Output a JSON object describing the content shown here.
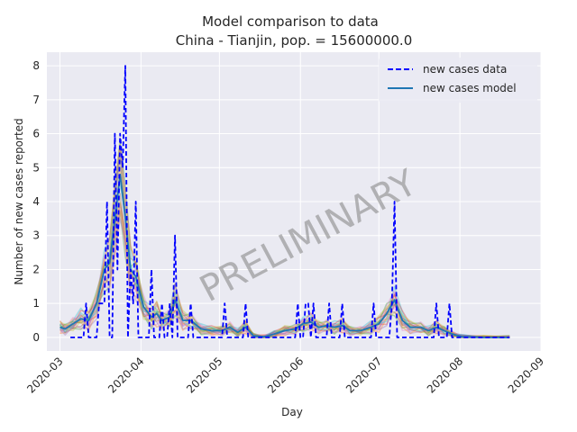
{
  "chart_data": {
    "type": "line",
    "title": "Model comparison to data",
    "subtitle": "China - Tianjin, pop. = 15600000.0",
    "xlabel": "Day",
    "ylabel": "Number of new cases reported",
    "watermark": "PRELIMINARY",
    "x_range": [
      "2020-02-25",
      "2020-09-01"
    ],
    "ylim": [
      -0.4,
      8.4
    ],
    "x_ticks": [
      "2020-03",
      "2020-04",
      "2020-05",
      "2020-06",
      "2020-07",
      "2020-08",
      "2020-09"
    ],
    "y_ticks": [
      0,
      1,
      2,
      3,
      4,
      5,
      6,
      7,
      8
    ],
    "grid": true,
    "legend_position": "top-right",
    "colors": {
      "background": "#eaeaf2",
      "grid": "#ffffff",
      "data": "#0000ff",
      "model": "#1f77b4",
      "ensemble": [
        "#2ca02c",
        "#d62728",
        "#ff7f0e",
        "#8c564b",
        "#17becf",
        "#e377c2",
        "#bcbd22",
        "#9467bd"
      ]
    },
    "series": [
      {
        "name": "new cases data",
        "style": "dashed",
        "points": [
          [
            "2020-03-05",
            0
          ],
          [
            "2020-03-10",
            0
          ],
          [
            "2020-03-11",
            1
          ],
          [
            "2020-03-12",
            0
          ],
          [
            "2020-03-15",
            0
          ],
          [
            "2020-03-16",
            1
          ],
          [
            "2020-03-18",
            1
          ],
          [
            "2020-03-19",
            4
          ],
          [
            "2020-03-20",
            0
          ],
          [
            "2020-03-21",
            0
          ],
          [
            "2020-03-22",
            6
          ],
          [
            "2020-03-23",
            2
          ],
          [
            "2020-03-24",
            6
          ],
          [
            "2020-03-25",
            5
          ],
          [
            "2020-03-26",
            8
          ],
          [
            "2020-03-27",
            0
          ],
          [
            "2020-03-28",
            2
          ],
          [
            "2020-03-29",
            1
          ],
          [
            "2020-03-30",
            4
          ],
          [
            "2020-03-31",
            0
          ],
          [
            "2020-04-04",
            0
          ],
          [
            "2020-04-05",
            2
          ],
          [
            "2020-04-06",
            0
          ],
          [
            "2020-04-08",
            0
          ],
          [
            "2020-04-09",
            1
          ],
          [
            "2020-04-10",
            0
          ],
          [
            "2020-04-11",
            0
          ],
          [
            "2020-04-12",
            1
          ],
          [
            "2020-04-13",
            0
          ],
          [
            "2020-04-14",
            3
          ],
          [
            "2020-04-15",
            0
          ],
          [
            "2020-04-19",
            0
          ],
          [
            "2020-04-20",
            1
          ],
          [
            "2020-04-21",
            0
          ],
          [
            "2020-05-02",
            0
          ],
          [
            "2020-05-03",
            1
          ],
          [
            "2020-05-04",
            0
          ],
          [
            "2020-05-10",
            0
          ],
          [
            "2020-05-11",
            1
          ],
          [
            "2020-05-12",
            0
          ],
          [
            "2020-05-30",
            0
          ],
          [
            "2020-05-31",
            1
          ],
          [
            "2020-06-01",
            0
          ],
          [
            "2020-06-02",
            0
          ],
          [
            "2020-06-03",
            1
          ],
          [
            "2020-06-04",
            1
          ],
          [
            "2020-06-05",
            0
          ],
          [
            "2020-06-06",
            1
          ],
          [
            "2020-06-07",
            0
          ],
          [
            "2020-06-11",
            0
          ],
          [
            "2020-06-12",
            1
          ],
          [
            "2020-06-13",
            0
          ],
          [
            "2020-06-16",
            0
          ],
          [
            "2020-06-17",
            1
          ],
          [
            "2020-06-18",
            0
          ],
          [
            "2020-06-28",
            0
          ],
          [
            "2020-06-29",
            1
          ],
          [
            "2020-06-30",
            0
          ],
          [
            "2020-07-05",
            0
          ],
          [
            "2020-07-06",
            1
          ],
          [
            "2020-07-07",
            4
          ],
          [
            "2020-07-08",
            0
          ],
          [
            "2020-07-22",
            0
          ],
          [
            "2020-07-23",
            1
          ],
          [
            "2020-07-24",
            0
          ],
          [
            "2020-07-27",
            0
          ],
          [
            "2020-07-28",
            1
          ],
          [
            "2020-07-29",
            0
          ],
          [
            "2020-08-20",
            0
          ]
        ]
      },
      {
        "name": "new cases model",
        "style": "solid",
        "points": [
          [
            "2020-03-01",
            0.3
          ],
          [
            "2020-03-03",
            0.25
          ],
          [
            "2020-03-06",
            0.4
          ],
          [
            "2020-03-09",
            0.55
          ],
          [
            "2020-03-12",
            0.5
          ],
          [
            "2020-03-15",
            1.0
          ],
          [
            "2020-03-18",
            2.0
          ],
          [
            "2020-03-20",
            2.2
          ],
          [
            "2020-03-22",
            3.5
          ],
          [
            "2020-03-24",
            4.8
          ],
          [
            "2020-03-26",
            3.5
          ],
          [
            "2020-03-28",
            2.0
          ],
          [
            "2020-03-30",
            1.8
          ],
          [
            "2020-04-02",
            0.9
          ],
          [
            "2020-04-05",
            0.6
          ],
          [
            "2020-04-07",
            0.7
          ],
          [
            "2020-04-09",
            0.5
          ],
          [
            "2020-04-12",
            0.6
          ],
          [
            "2020-04-14",
            1.1
          ],
          [
            "2020-04-17",
            0.5
          ],
          [
            "2020-04-20",
            0.5
          ],
          [
            "2020-04-24",
            0.25
          ],
          [
            "2020-04-28",
            0.2
          ],
          [
            "2020-05-02",
            0.2
          ],
          [
            "2020-05-05",
            0.3
          ],
          [
            "2020-05-08",
            0.15
          ],
          [
            "2020-05-11",
            0.3
          ],
          [
            "2020-05-14",
            0.05
          ],
          [
            "2020-05-18",
            0.02
          ],
          [
            "2020-05-22",
            0.1
          ],
          [
            "2020-05-26",
            0.2
          ],
          [
            "2020-05-30",
            0.25
          ],
          [
            "2020-06-02",
            0.4
          ],
          [
            "2020-06-05",
            0.45
          ],
          [
            "2020-06-08",
            0.3
          ],
          [
            "2020-06-11",
            0.35
          ],
          [
            "2020-06-14",
            0.3
          ],
          [
            "2020-06-17",
            0.35
          ],
          [
            "2020-06-20",
            0.2
          ],
          [
            "2020-06-24",
            0.2
          ],
          [
            "2020-06-28",
            0.3
          ],
          [
            "2020-07-01",
            0.4
          ],
          [
            "2020-07-04",
            0.7
          ],
          [
            "2020-07-07",
            1.1
          ],
          [
            "2020-07-10",
            0.5
          ],
          [
            "2020-07-13",
            0.3
          ],
          [
            "2020-07-17",
            0.3
          ],
          [
            "2020-07-20",
            0.2
          ],
          [
            "2020-07-23",
            0.3
          ],
          [
            "2020-07-26",
            0.2
          ],
          [
            "2020-07-29",
            0.1
          ],
          [
            "2020-08-02",
            0.02
          ],
          [
            "2020-08-10",
            0.0
          ],
          [
            "2020-08-20",
            0.0
          ]
        ]
      }
    ]
  }
}
